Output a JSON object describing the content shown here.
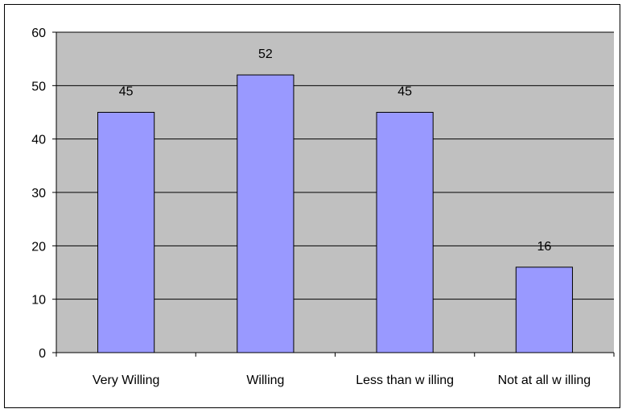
{
  "chart_data": {
    "type": "bar",
    "categories": [
      "Very Willing",
      "Willing",
      "Less than w illing",
      "Not at all w illing"
    ],
    "values": [
      45,
      52,
      45,
      16
    ],
    "data_labels": [
      "45",
      "52",
      "45",
      "16"
    ],
    "yticks": [
      "0",
      "10",
      "20",
      "30",
      "40",
      "50",
      "60"
    ],
    "ylim": [
      0,
      60
    ],
    "title": "",
    "xlabel": "",
    "ylabel": "",
    "grid": true,
    "legend": "none",
    "colors": {
      "plot_background": "#c0c0c0",
      "bar_fill": "#9999ff",
      "bar_stroke": "#000000",
      "gridline": "#000000"
    }
  }
}
